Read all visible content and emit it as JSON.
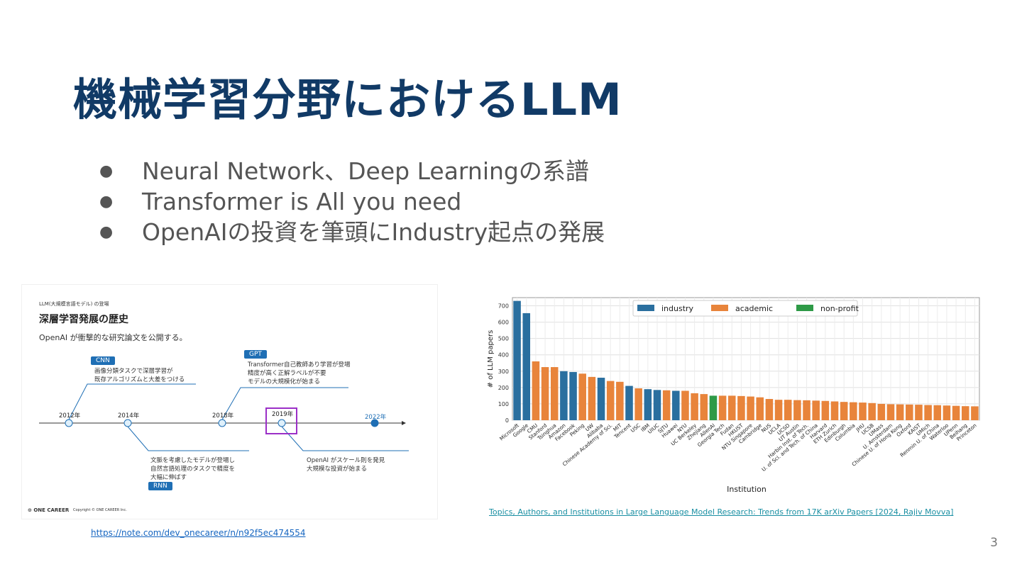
{
  "title": "機械学習分野におけるLLM",
  "bullets": [
    "Neural Network、Deep Learningの系譜",
    "Transformer is All you need",
    "OpenAIの投資を筆頭にIndustry起点の発展"
  ],
  "left_slide": {
    "header_small": "LLM(大規模言語モデル) の登場",
    "heading": "深層学習発展の歴史",
    "subtitle": "OpenAI が衝撃的な研究論文を公開する。",
    "tags": {
      "cnn": "CNN",
      "gpt": "GPT",
      "rnn": "RNN"
    },
    "years": [
      "2012年",
      "2014年",
      "2018年",
      "2019年",
      "2022年"
    ],
    "notes": {
      "cnn": [
        "画像分類タスクで深層学習が",
        "既存アルゴリズムと大差をつける"
      ],
      "gpt": [
        "Transformer自己教師あり学習が登場",
        "精度が高く正解ラベルが不要",
        "モデルの大規模化が始まる"
      ],
      "rnn": [
        "文脈を考慮したモデルが登場し",
        "自然言語処理のタスクで精度を",
        "大幅に伸ばす"
      ],
      "openai": [
        "OpenAI がスケール則を発見",
        "大規模な投資が始まる"
      ]
    },
    "footer_logo": "ONE CAREER",
    "footer_copy": "Copyright © ONE CAREER Inc."
  },
  "chart_data": {
    "type": "bar",
    "xlabel": "Institution",
    "ylabel": "# of LLM papers",
    "ylim": [
      0,
      750
    ],
    "yticks": [
      0,
      100,
      200,
      300,
      400,
      500,
      600,
      700
    ],
    "grid": true,
    "legend_position": "top-center",
    "legend": [
      {
        "name": "industry",
        "color": "#2a6f9f"
      },
      {
        "name": "academic",
        "color": "#e8843b"
      },
      {
        "name": "non-profit",
        "color": "#2e9a47"
      }
    ],
    "categories": [
      "Microsoft",
      "Google",
      "CMU",
      "Stanford",
      "Tsinghua",
      "Amazon",
      "Facebook",
      "Peking",
      "UW",
      "Alibaba",
      "Chinese Academy of Sci.",
      "MIT",
      "Tencent",
      "USC",
      "IBM",
      "UIUC",
      "SJTU",
      "Huawei",
      "NYU",
      "UC Berkeley",
      "Zhejiang",
      "AllenAI",
      "Georgia Tech",
      "Fudan",
      "HKUST",
      "NTU Singapore",
      "Cambridge",
      "NUS",
      "UCLA",
      "UCSD",
      "UT Austin",
      "Harbin Inst. of Tech.",
      "U. of Sci. and Tech. of China",
      "Harvard",
      "ETH Zurich",
      "Edinburgh",
      "Columbia",
      "JHU",
      "UCSB",
      "UMass",
      "U. Amsterdam",
      "Chinese U. of Hong Kong",
      "Oxford",
      "KAIST",
      "UMich",
      "Renmin U. of China",
      "Waterloo",
      "UPenn",
      "Beihang",
      "Princeton"
    ],
    "values": [
      730,
      655,
      360,
      325,
      325,
      300,
      295,
      285,
      265,
      260,
      240,
      235,
      210,
      195,
      190,
      185,
      183,
      180,
      180,
      165,
      160,
      150,
      150,
      150,
      148,
      145,
      140,
      130,
      125,
      125,
      123,
      122,
      120,
      118,
      115,
      112,
      110,
      108,
      105,
      100,
      98,
      97,
      96,
      95,
      93,
      92,
      90,
      88,
      86,
      85
    ],
    "kind": [
      "industry",
      "industry",
      "academic",
      "academic",
      "academic",
      "industry",
      "industry",
      "academic",
      "academic",
      "industry",
      "academic",
      "academic",
      "industry",
      "academic",
      "industry",
      "industry",
      "academic",
      "industry",
      "academic",
      "academic",
      "academic",
      "non-profit",
      "academic",
      "academic",
      "academic",
      "academic",
      "academic",
      "academic",
      "academic",
      "academic",
      "academic",
      "academic",
      "academic",
      "academic",
      "academic",
      "academic",
      "academic",
      "academic",
      "academic",
      "academic",
      "academic",
      "academic",
      "academic",
      "academic",
      "academic",
      "academic",
      "academic",
      "academic",
      "academic",
      "academic"
    ]
  },
  "links": {
    "note": "https://note.com/dev_onecareer/n/n92f5ec474554",
    "citation": "Topics, Authors, and Institutions in Large Language Model Research: Trends from 17K arXiv Papers [2024, Rajiv Movva]"
  },
  "page_number": "3",
  "colors": {
    "title": "#113a66",
    "timeline_blue": "#1f6fb5",
    "highlight": "#9b2fc7"
  }
}
